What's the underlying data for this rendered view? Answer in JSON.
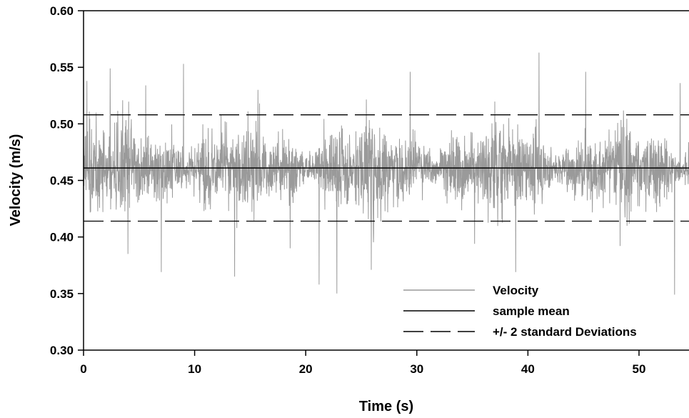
{
  "chart_data": {
    "type": "line",
    "xlabel": "Time (s)",
    "ylabel": "Velocity (m/s)",
    "xlim": [
      0,
      54.5
    ],
    "ylim": [
      0.3,
      0.6
    ],
    "x_ticks": [
      "0",
      "10",
      "20",
      "30",
      "40",
      "50"
    ],
    "y_ticks": [
      "0.30",
      "0.35",
      "0.40",
      "0.45",
      "0.50",
      "0.55",
      "0.60"
    ],
    "x_tick_values": [
      0,
      10,
      20,
      30,
      40,
      50
    ],
    "y_tick_values": [
      0.3,
      0.35,
      0.4,
      0.45,
      0.5,
      0.55,
      0.6
    ],
    "grid": false,
    "legend_position": "bottom-right",
    "series": [
      {
        "name": "Velocity",
        "style": "solid",
        "color": "#9a9a9a",
        "sample_interval_s": 0.02,
        "mean": 0.461,
        "std": 0.0235,
        "spikes": [
          {
            "x": 0.3,
            "y": 0.538
          },
          {
            "x": 2.4,
            "y": 0.549
          },
          {
            "x": 5.6,
            "y": 0.534
          },
          {
            "x": 7.0,
            "y": 0.369
          },
          {
            "x": 9.0,
            "y": 0.553
          },
          {
            "x": 13.6,
            "y": 0.365
          },
          {
            "x": 15.7,
            "y": 0.53
          },
          {
            "x": 21.2,
            "y": 0.358
          },
          {
            "x": 22.8,
            "y": 0.35
          },
          {
            "x": 25.9,
            "y": 0.371
          },
          {
            "x": 29.4,
            "y": 0.546
          },
          {
            "x": 38.9,
            "y": 0.369
          },
          {
            "x": 41.0,
            "y": 0.563
          },
          {
            "x": 45.2,
            "y": 0.546
          },
          {
            "x": 53.2,
            "y": 0.349
          },
          {
            "x": 53.7,
            "y": 0.536
          },
          {
            "x": 4.0,
            "y": 0.385
          },
          {
            "x": 18.6,
            "y": 0.39
          },
          {
            "x": 35.2,
            "y": 0.394
          },
          {
            "x": 48.3,
            "y": 0.392
          }
        ]
      },
      {
        "name": "sample mean",
        "style": "solid",
        "color": "#000000",
        "y": 0.461
      },
      {
        "name": "+/- 2 standard Deviations",
        "style": "dashed",
        "color": "#000000",
        "y_values": [
          0.508,
          0.414
        ]
      }
    ]
  }
}
